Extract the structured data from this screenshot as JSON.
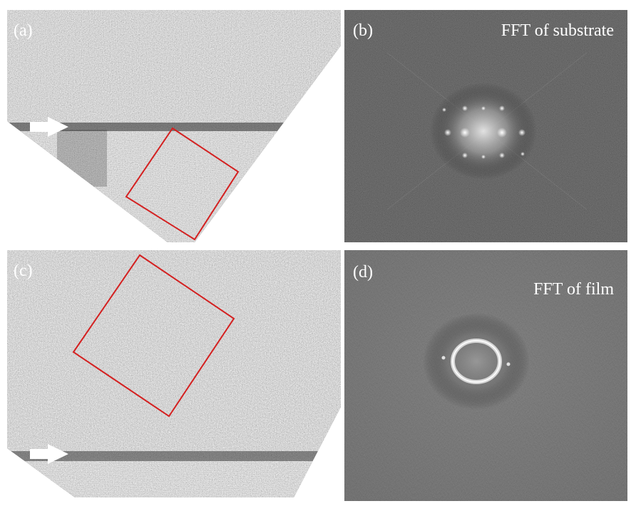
{
  "figure": {
    "panels": [
      {
        "label": "(a)",
        "caption": ""
      },
      {
        "label": "(b)",
        "caption": "FFT of substrate"
      },
      {
        "label": "(c)",
        "caption": ""
      },
      {
        "label": "(d)",
        "caption": "FFT of film"
      }
    ]
  },
  "colors": {
    "background": "#ffffff",
    "micrograph_base": "#5f5f5f",
    "fft_background": "#0d0d0d",
    "highlight_box": "#d42020",
    "arrow": "#ffffff",
    "label_text": "#ffffff"
  },
  "icons": {
    "arrow": "right-arrow-icon"
  }
}
